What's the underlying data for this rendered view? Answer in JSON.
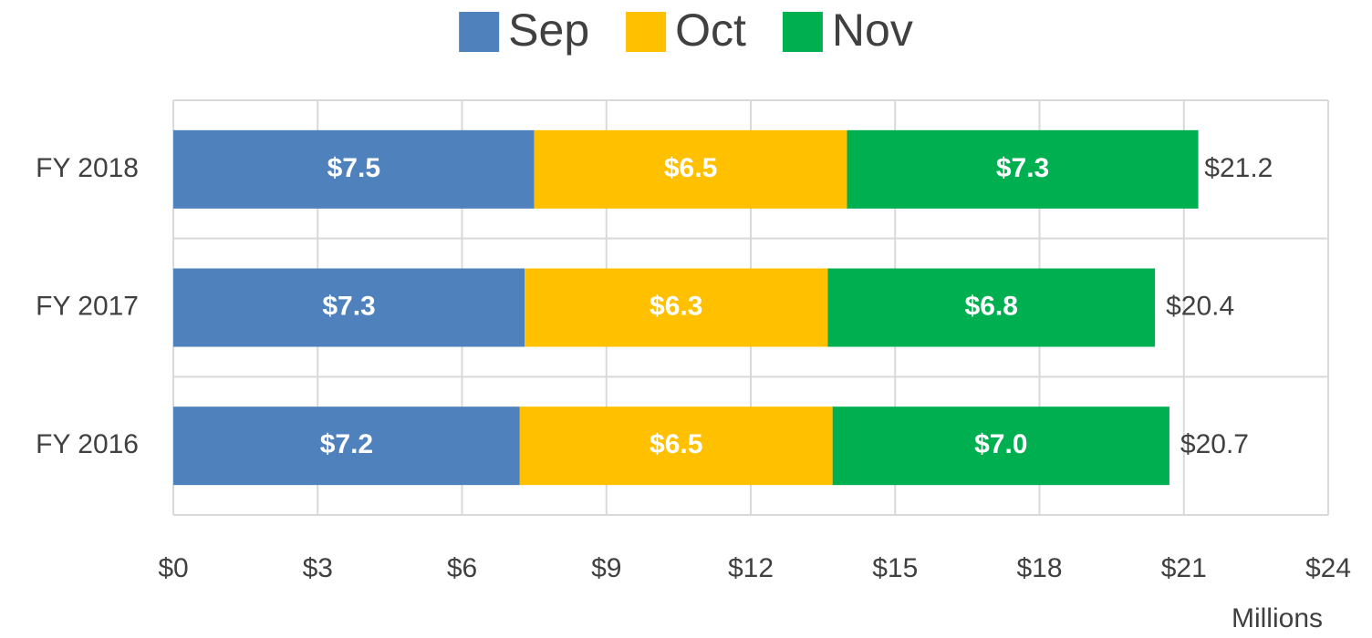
{
  "chart_data": {
    "type": "stacked_bar_horizontal",
    "categories": [
      "FY 2018",
      "FY 2017",
      "FY 2016"
    ],
    "series": [
      {
        "name": "Sep",
        "color": "#4f81bd",
        "values": [
          7.5,
          7.3,
          7.2
        ],
        "value_labels": [
          "$7.5",
          "$7.3",
          "$7.2"
        ]
      },
      {
        "name": "Oct",
        "color": "#ffc000",
        "values": [
          6.5,
          6.3,
          6.5
        ],
        "value_labels": [
          "$6.5",
          "$6.3",
          "$6.5"
        ]
      },
      {
        "name": "Nov",
        "color": "#00b050",
        "values": [
          7.3,
          6.8,
          7.0
        ],
        "value_labels": [
          "$7.3",
          "$6.8",
          "$7.0"
        ]
      }
    ],
    "totals": [
      21.2,
      20.4,
      20.7
    ],
    "total_labels": [
      "$21.2",
      "$20.4",
      "$20.7"
    ],
    "xlim": [
      0,
      24
    ],
    "xticks": [
      {
        "value": 0,
        "label": "$0"
      },
      {
        "value": 3,
        "label": "$3"
      },
      {
        "value": 6,
        "label": "$6"
      },
      {
        "value": 9,
        "label": "$9"
      },
      {
        "value": 12,
        "label": "$12"
      },
      {
        "value": 15,
        "label": "$15"
      },
      {
        "value": 18,
        "label": "$18"
      },
      {
        "value": 21,
        "label": "$21"
      },
      {
        "value": 24,
        "label": "$24"
      }
    ],
    "x_label": "Millions",
    "grid": true,
    "legend": "top"
  }
}
